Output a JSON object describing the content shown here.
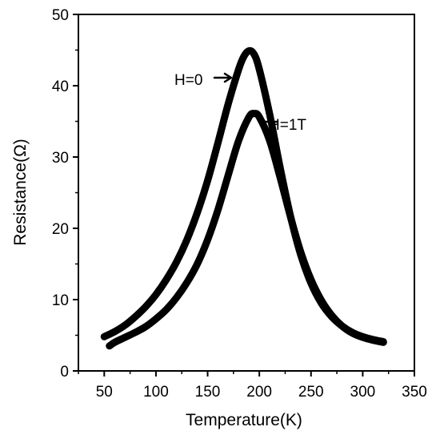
{
  "chart_data": {
    "type": "line",
    "xlabel": "Temperature(K)",
    "ylabel": "Resistance(Ω)",
    "xlim": [
      25,
      350
    ],
    "ylim": [
      0,
      50
    ],
    "x_ticks": [
      50,
      100,
      150,
      200,
      250,
      300,
      350
    ],
    "y_ticks": [
      0,
      10,
      20,
      30,
      40,
      50
    ],
    "grid": false,
    "legend": "none",
    "series": [
      {
        "name": "H=0",
        "x": [
          50,
          60,
          70,
          80,
          90,
          100,
          110,
          120,
          130,
          140,
          150,
          160,
          170,
          180,
          185,
          190,
          195,
          200,
          210,
          220,
          230,
          240,
          250,
          260,
          270,
          280,
          290,
          300,
          310,
          320
        ],
        "y": [
          4.8,
          5.5,
          6.4,
          7.6,
          9.0,
          10.7,
          12.8,
          15.3,
          18.4,
          22.2,
          26.7,
          32.0,
          37.5,
          42.3,
          44.1,
          44.9,
          44.4,
          42.3,
          36.0,
          28.6,
          21.8,
          16.3,
          12.3,
          9.5,
          7.6,
          6.3,
          5.4,
          4.8,
          4.4,
          4.1
        ]
      },
      {
        "name": "H=1T",
        "x": [
          55,
          60,
          70,
          80,
          90,
          100,
          110,
          120,
          130,
          140,
          150,
          160,
          170,
          180,
          190,
          195,
          200,
          210,
          220,
          230,
          240,
          250,
          260,
          270,
          280,
          290,
          300,
          310,
          320
        ],
        "y": [
          3.5,
          4.0,
          4.7,
          5.4,
          6.2,
          7.3,
          8.6,
          10.3,
          12.4,
          15.0,
          18.4,
          22.6,
          27.5,
          32.3,
          35.6,
          36.1,
          35.6,
          32.3,
          27.2,
          21.7,
          16.7,
          12.8,
          9.9,
          7.8,
          6.3,
          5.3,
          4.7,
          4.3,
          4.0
        ]
      }
    ],
    "annotations": [
      "H=0",
      "H=1T"
    ]
  }
}
